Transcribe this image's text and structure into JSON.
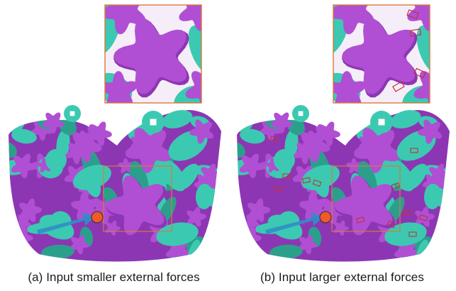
{
  "figure": {
    "panels": [
      {
        "id": "a",
        "caption": "(a) Input smaller external forces",
        "constraint_markers": false
      },
      {
        "id": "b",
        "caption": "(b) Input larger external forces",
        "constraint_markers": true
      }
    ]
  },
  "colors": {
    "teal": "#3cc9b1",
    "teal_dark": "#2aa08c",
    "magenta": "#b04fd3",
    "magenta_dark": "#8d36b3",
    "force_arrow": "#2f8ec9",
    "force_point": "#ef5a2a",
    "frame": "#d9793c",
    "constraint": "#c2323a"
  },
  "icons": {
    "force_arrow": "arrow-icon",
    "force_point": "dot-icon",
    "constraint": "rectangle-outline-icon"
  }
}
